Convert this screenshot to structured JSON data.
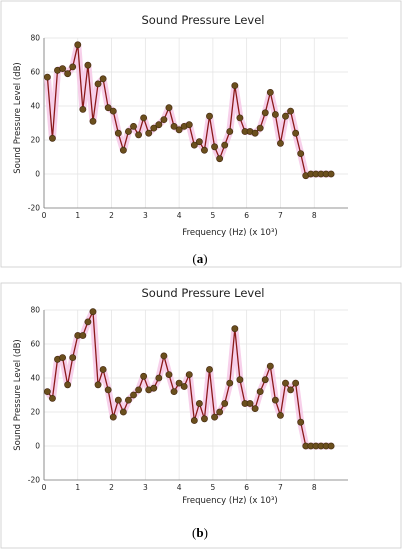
{
  "chart_data": [
    {
      "type": "line",
      "title": "Sound Pressure Level",
      "xlabel": "Frequency (Hz) (x 10³)",
      "ylabel": "Sound Pressure Level (dB)",
      "xlim": [
        0,
        9
      ],
      "ylim": [
        -20,
        80
      ],
      "xticks": [
        0,
        1,
        2,
        3,
        4,
        5,
        6,
        7,
        8
      ],
      "yticks": [
        -20,
        0,
        20,
        40,
        60,
        80
      ],
      "grid": true,
      "caption": {
        "open": "(",
        "letter": "a",
        "close": ")"
      },
      "x": [
        0.1,
        0.25,
        0.4,
        0.55,
        0.7,
        0.85,
        1.0,
        1.15,
        1.3,
        1.45,
        1.6,
        1.75,
        1.9,
        2.05,
        2.2,
        2.35,
        2.5,
        2.65,
        2.8,
        2.95,
        3.1,
        3.25,
        3.4,
        3.55,
        3.7,
        3.85,
        4.0,
        4.15,
        4.3,
        4.45,
        4.6,
        4.75,
        4.9,
        5.05,
        5.2,
        5.35,
        5.5,
        5.65,
        5.8,
        5.95,
        6.1,
        6.25,
        6.4,
        6.55,
        6.7,
        6.85,
        7.0,
        7.15,
        7.3,
        7.45,
        7.6,
        7.75,
        7.9,
        8.05,
        8.2,
        8.35,
        8.5
      ],
      "y": [
        57,
        21,
        61,
        62,
        59,
        63,
        76,
        38,
        64,
        31,
        53,
        56,
        39,
        37,
        24,
        14,
        25,
        28,
        23,
        33,
        24,
        27,
        29,
        32,
        39,
        28,
        26,
        28,
        29,
        17,
        19,
        14,
        34,
        16,
        9,
        17,
        25,
        52,
        33,
        25,
        25,
        24,
        27,
        36,
        48,
        35,
        18,
        34,
        37,
        24,
        12,
        -1,
        0,
        0,
        0,
        0,
        0
      ]
    },
    {
      "type": "line",
      "title": "Sound Pressure Level",
      "xlabel": "Frequency (Hz) (x 10³)",
      "ylabel": "Sound Pressure Level (dB)",
      "xlim": [
        0,
        9
      ],
      "ylim": [
        -20,
        80
      ],
      "xticks": [
        0,
        1,
        2,
        3,
        4,
        5,
        6,
        7,
        8
      ],
      "yticks": [
        -20,
        0,
        20,
        40,
        60,
        80
      ],
      "grid": true,
      "caption": {
        "open": "(",
        "letter": "b",
        "close": ")"
      },
      "x": [
        0.1,
        0.25,
        0.4,
        0.55,
        0.7,
        0.85,
        1.0,
        1.15,
        1.3,
        1.45,
        1.6,
        1.75,
        1.9,
        2.05,
        2.2,
        2.35,
        2.5,
        2.65,
        2.8,
        2.95,
        3.1,
        3.25,
        3.4,
        3.55,
        3.7,
        3.85,
        4.0,
        4.15,
        4.3,
        4.45,
        4.6,
        4.75,
        4.9,
        5.05,
        5.2,
        5.35,
        5.5,
        5.65,
        5.8,
        5.95,
        6.1,
        6.25,
        6.4,
        6.55,
        6.7,
        6.85,
        7.0,
        7.15,
        7.3,
        7.45,
        7.6,
        7.75,
        7.9,
        8.05,
        8.2,
        8.35,
        8.5
      ],
      "y": [
        32,
        28,
        51,
        52,
        36,
        52,
        65,
        65,
        73,
        79,
        36,
        45,
        33,
        17,
        27,
        20,
        27,
        30,
        33,
        41,
        33,
        34,
        40,
        53,
        42,
        32,
        37,
        35,
        42,
        15,
        25,
        16,
        45,
        17,
        20,
        25,
        37,
        69,
        39,
        25,
        25,
        22,
        32,
        39,
        47,
        27,
        18,
        37,
        33,
        37,
        14,
        0,
        0,
        0,
        0,
        0,
        0
      ]
    }
  ],
  "colors": {
    "line": "#8b1a1a",
    "marker_fill": "#6b4f1d",
    "marker_edge": "#3e2a0c",
    "halo": "#f6c8e6",
    "grid": "#e2e2e2",
    "axis": "#777777",
    "frame": "#cccccc"
  }
}
